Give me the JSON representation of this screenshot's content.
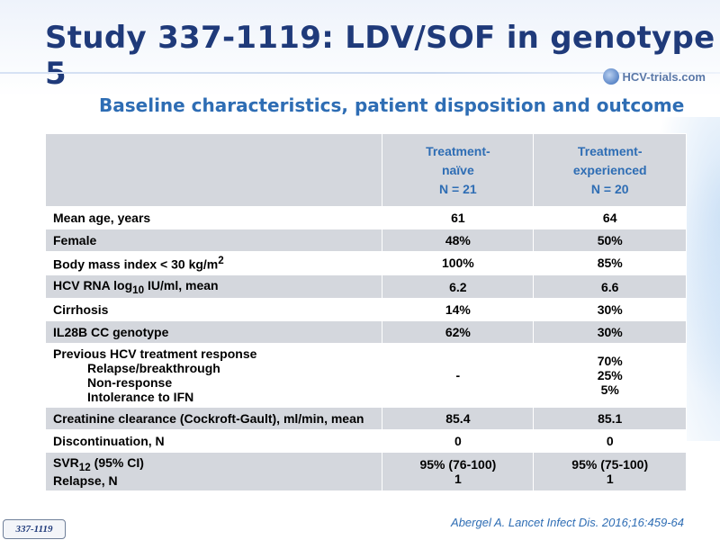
{
  "title": "Study 337-1119: LDV/SOF in genotype 5",
  "logo_text": "HCV-trials.com",
  "subtitle": "Baseline characteristics, patient disposition and outcome",
  "table": {
    "header": {
      "col1": {
        "line1": "Treatment-",
        "line2": "naïve",
        "line3": "N = 21"
      },
      "col2": {
        "line1": "Treatment-",
        "line2": "experienced",
        "line3": "N = 20"
      }
    },
    "rows": [
      {
        "label": "Mean age, years",
        "v1": "61",
        "v2": "64"
      },
      {
        "label": "Female",
        "v1": "48%",
        "v2": "50%"
      },
      {
        "label_pre": "Body mass index < 30 kg/m",
        "label_sup": "2",
        "label_post": "",
        "v1": "100%",
        "v2": "85%"
      },
      {
        "label_pre": "HCV RNA log",
        "label_sub": "10",
        "label_post": " IU/ml, mean",
        "v1": "6.2",
        "v2": "6.6"
      },
      {
        "label": "Cirrhosis",
        "v1": "14%",
        "v2": "30%"
      },
      {
        "label": "IL28B CC genotype",
        "v1": "62%",
        "v2": "30%"
      },
      {
        "label": "Previous HCV treatment response",
        "sub": [
          "Relapse/breakthrough",
          "Non-response",
          "Intolerance to IFN"
        ],
        "v1": "-",
        "v2_lines": [
          "70%",
          "25%",
          "5%"
        ]
      },
      {
        "label": "Creatinine clearance (Cockroft-Gault), ml/min, mean",
        "v1": "85.4",
        "v2": "85.1"
      },
      {
        "label": "Discontinuation, N",
        "v1": "0",
        "v2": "0"
      },
      {
        "label_pre": "SVR",
        "label_sub": "12",
        "label_post": " (95% CI)",
        "label2": "Relapse, N",
        "v1_lines": [
          "95% (76-100)",
          "1"
        ],
        "v2_lines": [
          "95% (75-100)",
          "1"
        ]
      }
    ]
  },
  "footer_badge": "337-1119",
  "citation": "Abergel A. Lancet Infect Dis. 2016;16:459-64",
  "colors": {
    "title": "#1f3a7a",
    "accent": "#2e6db4",
    "row_shade": "#d4d7dd"
  }
}
